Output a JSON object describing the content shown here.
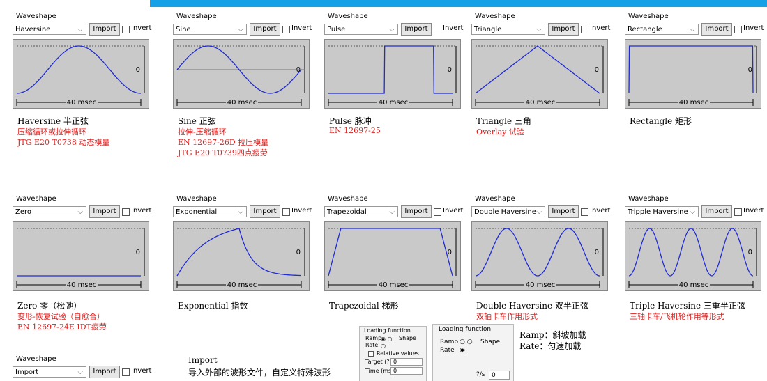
{
  "widget": {
    "label": "Waveshape",
    "import": "Import",
    "invert": "Invert",
    "zero": "0",
    "time": "40 msec"
  },
  "panels": [
    {
      "option": "Haversine",
      "title": "Haversine 半正弦",
      "notes": [
        "压缩循环或拉伸循环",
        "JTG E20 T0738 动态模量"
      ]
    },
    {
      "option": "Sine",
      "title": "Sine 正弦",
      "notes": [
        "拉伸-压缩循环",
        "EN 12697-26D 拉压模量",
        "JTG E20 T0739四点疲劳"
      ]
    },
    {
      "option": "Pulse",
      "title": "Pulse 脉冲",
      "notes": [
        "EN 12697-25"
      ]
    },
    {
      "option": "Triangle",
      "title": "Triangle 三角",
      "notes": [
        "Overlay 试验"
      ]
    },
    {
      "option": "Rectangle",
      "title": "Rectangle 矩形",
      "notes": []
    },
    {
      "option": "Zero",
      "title": "Zero 零（松弛）",
      "notes": [
        "变形-恢复试验（自愈合）",
        "EN 12697-24E IDT疲劳"
      ]
    },
    {
      "option": "Exponential",
      "title": "Exponential 指数",
      "notes": []
    },
    {
      "option": "Trapezoidal",
      "title": "Trapezoidal 梯形",
      "notes": []
    },
    {
      "option": "Double Haversine",
      "title": "Double Haversine 双半正弦",
      "notes": [
        "双轴卡车作用形式"
      ]
    },
    {
      "option": "Tripple Haversine",
      "title": "Triple Haversine 三重半正弦",
      "notes": [
        "三轴卡车/飞机轮作用等形式"
      ]
    }
  ],
  "import_panel": {
    "option": "Import",
    "title": "Import",
    "note": "导入外部的波形文件，自定义特殊波形"
  },
  "loading_box_1": {
    "title": "Loading function",
    "ramp": "Ramp",
    "shape": "Shape",
    "rate": "Rate",
    "relative": "Relative values",
    "target": "Target (?)",
    "target_value": "0",
    "time": "Time (ms)",
    "time_value": "0"
  },
  "loading_box_2": {
    "title": "Loading function",
    "ramp": "Ramp",
    "shape": "Shape",
    "rate": "Rate",
    "unit": "?/s",
    "value": "0"
  },
  "legend": [
    "Ramp：斜坡加载",
    "Rate：匀速加载"
  ]
}
